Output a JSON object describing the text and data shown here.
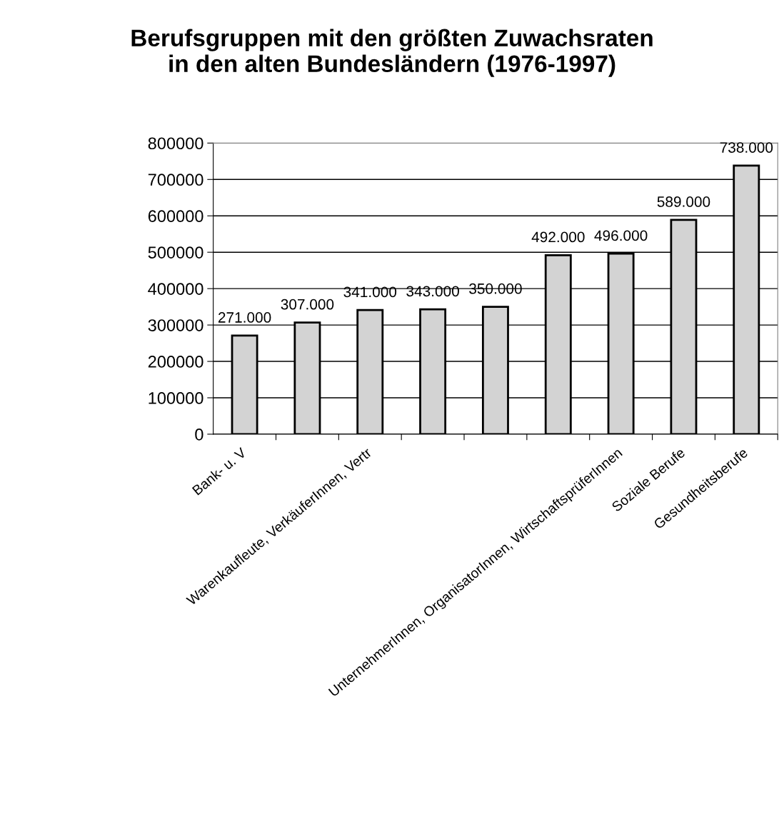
{
  "chart_data": {
    "type": "bar",
    "title": "Berufsgruppen mit den größten Zuwachsraten\nin den alten Bundesländern (1976-1997)",
    "categories": [
      "Bank- u. V",
      null,
      "Warenkaufleute, VerkäuferInnen, Vertr",
      null,
      null,
      null,
      "UnternehmerInnen, OrganisatorInnen, WirtschaftsprüferInnen",
      "Soziale Berufe",
      "Gesundheitsberufe"
    ],
    "values": [
      271000,
      307000,
      341000,
      343000,
      350000,
      492000,
      496000,
      589000,
      738000
    ],
    "value_labels": [
      "271.000",
      "307.000",
      "341.000",
      "343.000",
      "350.000",
      "492.000",
      "496.000",
      "589.000",
      "738.000"
    ],
    "color": "#d3d3d3",
    "ylim": [
      0,
      800000
    ],
    "yticks": [
      0,
      100000,
      200000,
      300000,
      400000,
      500000,
      600000,
      700000,
      800000
    ],
    "grid": "y",
    "legend": false
  }
}
